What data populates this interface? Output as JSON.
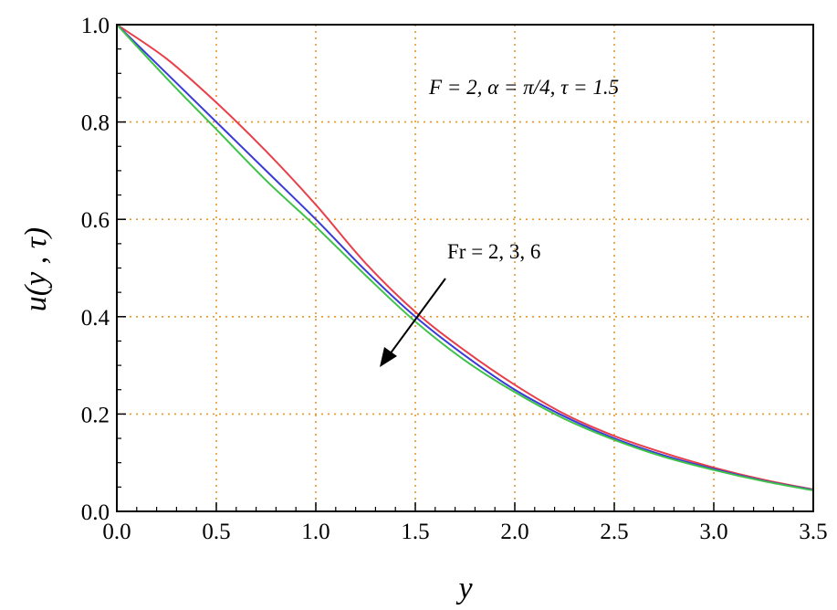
{
  "chart_data": {
    "type": "line",
    "xlabel": "y",
    "ylabel": "u(y , τ)",
    "xlim": [
      0,
      3.5
    ],
    "ylim": [
      0,
      1.0
    ],
    "x_ticks": [
      "0.0",
      "0.5",
      "1.0",
      "1.5",
      "2.0",
      "2.5",
      "3.0",
      "3.5"
    ],
    "y_ticks": [
      "0.0",
      "0.2",
      "0.4",
      "0.6",
      "0.8",
      "1.0"
    ],
    "grid": true,
    "annotations": {
      "params": "F = 2, α = π/4, τ = 1.5",
      "arrow_label": "Fr = 2, 3, 6"
    },
    "x": [
      0,
      0.25,
      0.5,
      0.75,
      1.0,
      1.25,
      1.5,
      1.75,
      2.0,
      2.25,
      2.5,
      2.75,
      3.0,
      3.25,
      3.5
    ],
    "series": [
      {
        "color": "#e8404a",
        "values": [
          1.0,
          0.93,
          0.84,
          0.74,
          0.63,
          0.51,
          0.41,
          0.33,
          0.26,
          0.2,
          0.155,
          0.12,
          0.09,
          0.065,
          0.045
        ]
      },
      {
        "color": "#3a3ad8",
        "values": [
          1.0,
          0.9,
          0.8,
          0.7,
          0.6,
          0.495,
          0.4,
          0.32,
          0.25,
          0.195,
          0.15,
          0.115,
          0.087,
          0.063,
          0.044
        ]
      },
      {
        "color": "#3ec24a",
        "values": [
          1.0,
          0.89,
          0.785,
          0.68,
          0.585,
          0.485,
          0.39,
          0.31,
          0.245,
          0.19,
          0.147,
          0.112,
          0.085,
          0.062,
          0.043
        ]
      }
    ]
  }
}
